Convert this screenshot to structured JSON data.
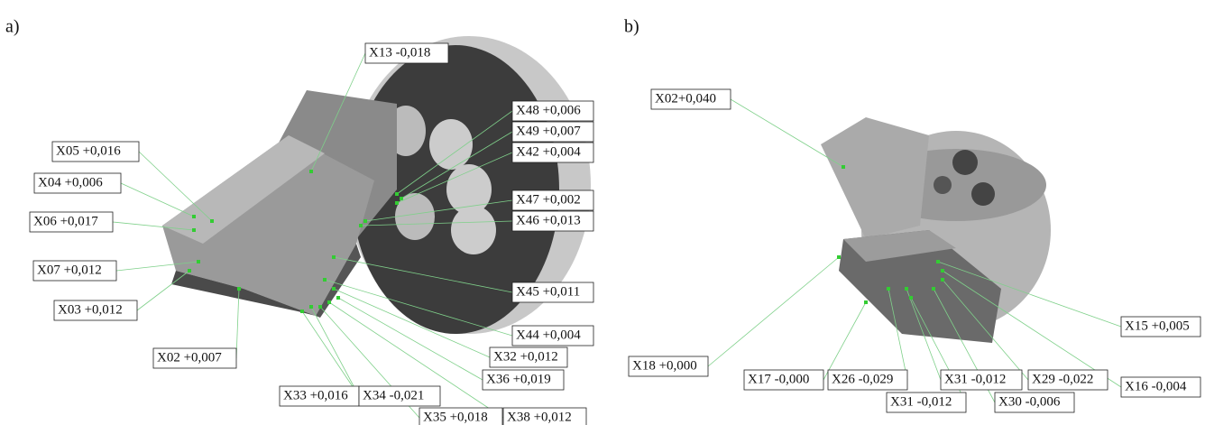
{
  "panel_a": {
    "label": "a)",
    "annotations": [
      "X13 -0,018",
      "X48 +0,006",
      "X49 +0,007",
      "X42 +0,004",
      "X05 +0,016",
      "X04 +0,006",
      "X47 +0,002",
      "X46 +0,013",
      "X06 +0,017",
      "X07 +0,012",
      "X45 +0,011",
      "X03 +0,012",
      "X44 +0,004",
      "X32 +0,012",
      "X02 +0,007",
      "X36 +0,019",
      "X33 +0,016",
      "X34 -0,021",
      "X35 +0,018",
      "X38 +0,012"
    ]
  },
  "panel_b": {
    "label": "b)",
    "annotations": [
      "X02+0,040",
      "X15 +0,005",
      "X18 +0,000",
      "X17 -0,000",
      "X26 -0,029",
      "X31 -0,012",
      "X29 -0,022",
      "X16 -0,004",
      "X31 -0,012",
      "X30 -0,006"
    ]
  }
}
